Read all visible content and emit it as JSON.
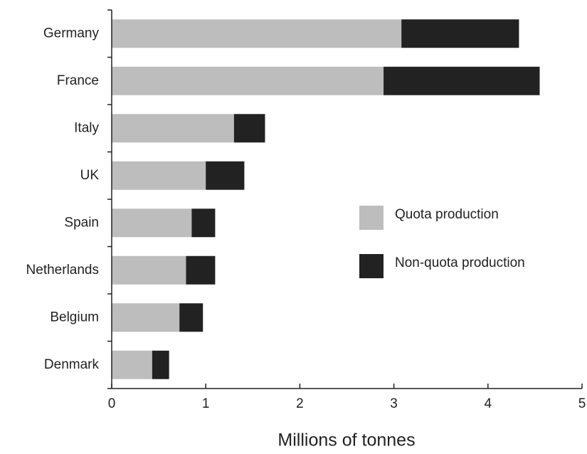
{
  "chart_data": {
    "type": "bar",
    "orientation": "horizontal",
    "stacked": true,
    "x_label": "Millions of tonnes",
    "categories": [
      "Germany",
      "France",
      "Italy",
      "UK",
      "Spain",
      "Netherlands",
      "Belgium",
      "Denmark"
    ],
    "series": [
      {
        "name": "Quota production",
        "color": "#bdbdbd",
        "values": [
          3.08,
          2.89,
          1.3,
          1.0,
          0.85,
          0.79,
          0.72,
          0.43
        ]
      },
      {
        "name": "Non-quota production",
        "color": "#222222",
        "values": [
          1.25,
          1.66,
          0.33,
          0.41,
          0.25,
          0.31,
          0.25,
          0.18
        ]
      }
    ],
    "xlim": [
      0,
      5
    ],
    "xticks": [
      0,
      1,
      2,
      3,
      4,
      5
    ],
    "grid": false
  }
}
